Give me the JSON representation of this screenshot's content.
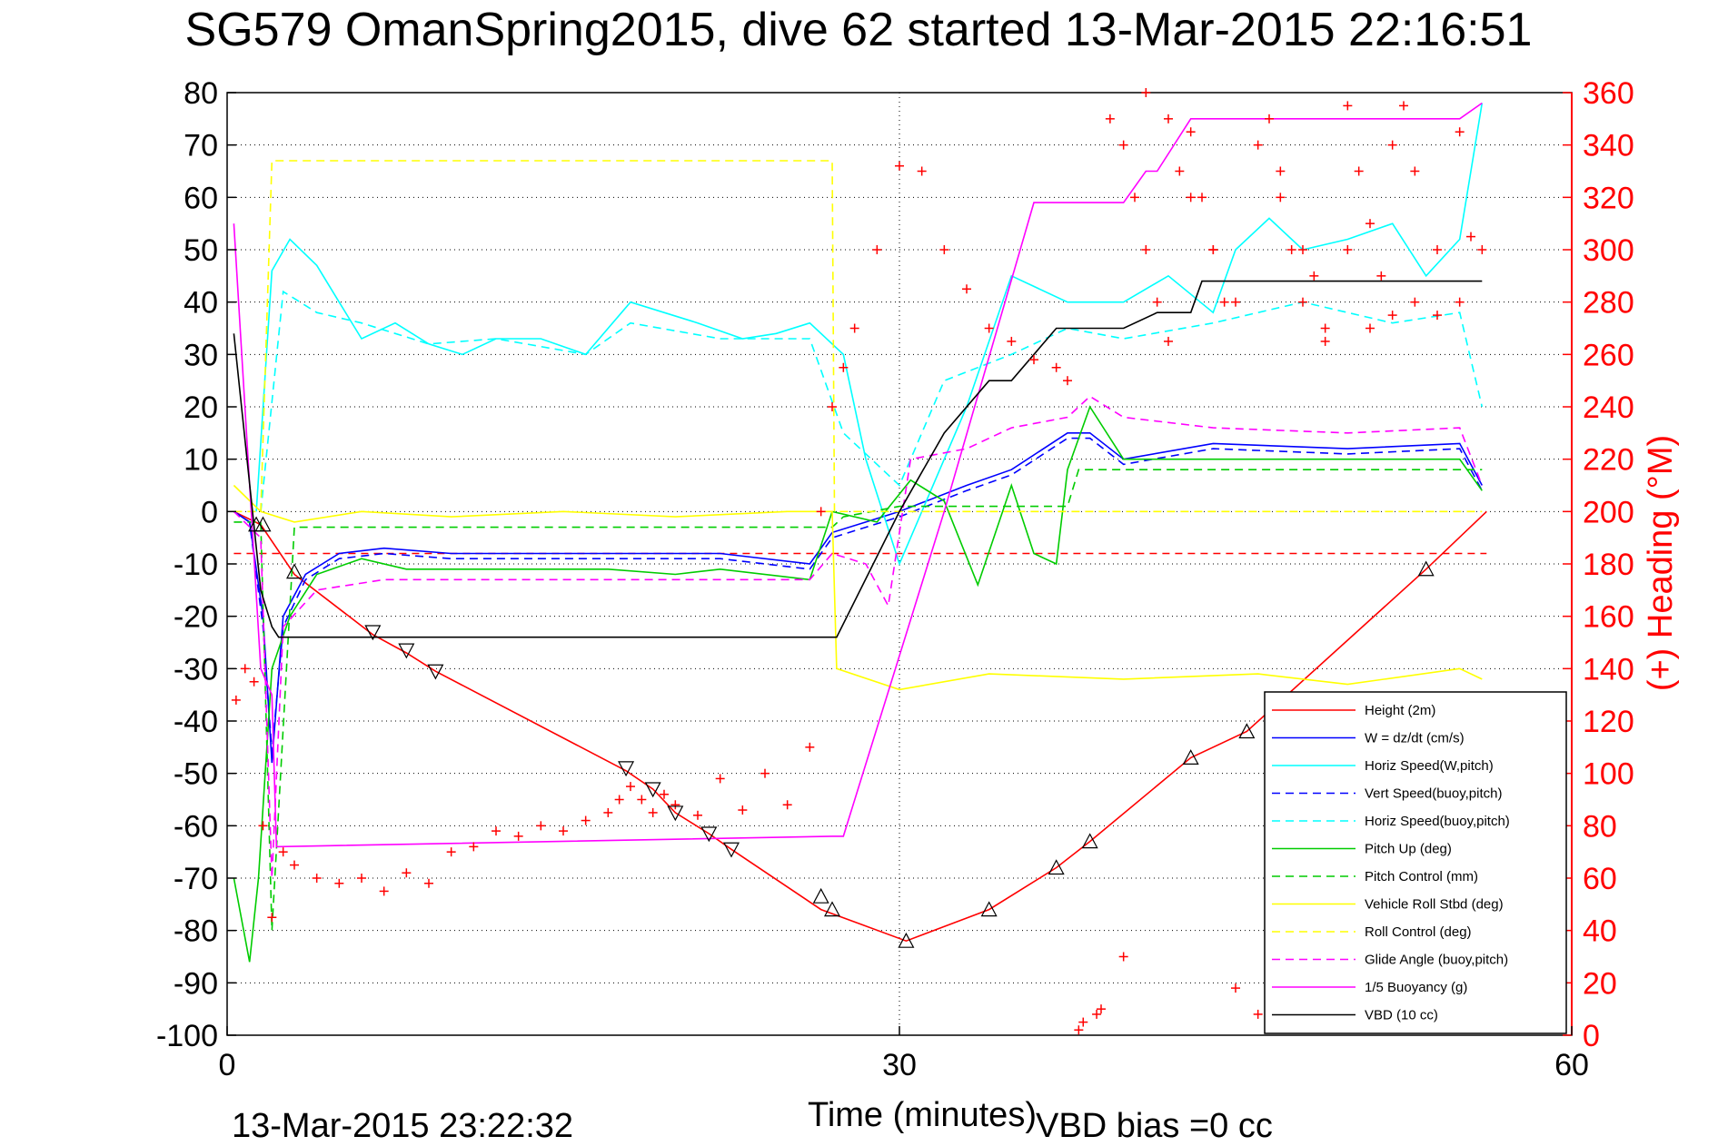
{
  "figure": {
    "title": "SG579 OmanSpring2015, dive 62 started 13-Mar-2015 22:16:51",
    "footer_left": "13-Mar-2015 23:22:32",
    "footer_right": "VBD bias =0 cc"
  },
  "chart_data": {
    "type": "line",
    "title": "SG579 OmanSpring2015, dive 62 started 13-Mar-2015 22:16:51",
    "xlabel": "Time (minutes)",
    "ylabel": "",
    "y2label": "(+) Heading (°M)",
    "xlim": [
      0,
      60
    ],
    "ylim": [
      -100,
      80
    ],
    "y2lim": [
      0,
      360
    ],
    "xticks": [
      "0",
      "30",
      "60"
    ],
    "yticks": [
      "80",
      "70",
      "60",
      "50",
      "40",
      "30",
      "20",
      "10",
      "0",
      "-10",
      "-20",
      "-30",
      "-40",
      "-50",
      "-60",
      "-70",
      "-80",
      "-90",
      "-100"
    ],
    "y2ticks": [
      "360",
      "340",
      "320",
      "300",
      "280",
      "260",
      "240",
      "220",
      "200",
      "180",
      "160",
      "140",
      "120",
      "100",
      "80",
      "60",
      "40",
      "20",
      "0"
    ],
    "grid": true,
    "legend_position": "bottom-right",
    "colors": {
      "red": "#ff0000",
      "blue": "#0000ff",
      "cyan": "#00ffff",
      "green": "#00cc00",
      "yellow": "#ffff00",
      "magenta": "#ff00ff",
      "black": "#000000"
    },
    "series": [
      {
        "name": "Height (2m)",
        "color": "#ff0000",
        "dash": "solid",
        "x": [
          0.3,
          1.5,
          3.0,
          6.5,
          8.0,
          9.3,
          17.8,
          19.0,
          20.0,
          21.5,
          22.5,
          26.5,
          30.3,
          34.0,
          37.0,
          38.5,
          43.0,
          45.5,
          53.5,
          56.2
        ],
        "y": [
          0,
          -2.5,
          -12,
          -23.5,
          -27,
          -30.5,
          -49.5,
          -53,
          -57.5,
          -61.5,
          -64.5,
          -76,
          -82,
          -76,
          -68,
          -63,
          -47,
          -42,
          -11,
          0
        ]
      },
      {
        "name": "W = dz/dt (cm/s)",
        "color": "#0000ff",
        "dash": "solid",
        "x": [
          0.3,
          1.0,
          1.6,
          2.0,
          2.5,
          3.5,
          5.0,
          7.0,
          10.0,
          17.0,
          19.0,
          22.0,
          26.0,
          27.0,
          28.5,
          30.0,
          33.0,
          35.0,
          37.5,
          38.5,
          40.0,
          44.0,
          50.0,
          55.0,
          56.0
        ],
        "y": [
          0,
          -2,
          -20,
          -48,
          -20,
          -12,
          -8,
          -7,
          -8,
          -8,
          -8,
          -8,
          -10,
          -4,
          -2,
          0,
          5,
          8,
          15,
          15,
          10,
          13,
          12,
          13,
          5
        ]
      },
      {
        "name": "Horiz Speed(W,pitch)",
        "color": "#00ffff",
        "dash": "solid",
        "x": [
          1.3,
          2.0,
          2.8,
          4.0,
          5.0,
          6.0,
          7.5,
          9.0,
          10.5,
          12.0,
          14.0,
          16.0,
          18.0,
          19.5,
          21.0,
          23.0,
          24.5,
          26.0,
          27.5,
          28.5,
          30.0,
          32.0,
          33.0,
          35.0,
          37.5,
          40.0,
          42.0,
          44.0,
          45.0,
          46.5,
          48.0,
          50.0,
          52.0,
          53.5,
          55.0,
          56.0
        ],
        "y": [
          0,
          46,
          52,
          47,
          40,
          33,
          36,
          32,
          30,
          33,
          33,
          30,
          40,
          38,
          36,
          33,
          34,
          36,
          30,
          10,
          -10,
          10,
          20,
          45,
          40,
          40,
          45,
          38,
          50,
          56,
          50,
          52,
          55,
          45,
          52,
          78
        ]
      },
      {
        "name": "Vert Speed(buoy,pitch)",
        "color": "#0000ff",
        "dash": "dash",
        "x": [
          0.3,
          1.0,
          1.6,
          2.0,
          2.5,
          3.5,
          5.0,
          7.0,
          10.0,
          17.0,
          19.0,
          22.0,
          26.0,
          27.0,
          28.5,
          30.0,
          33.0,
          35.0,
          37.5,
          38.5,
          40.0,
          44.0,
          50.0,
          55.0,
          56.0
        ],
        "y": [
          0,
          -2,
          -22,
          -46,
          -22,
          -13,
          -9,
          -8,
          -9,
          -9,
          -9,
          -9,
          -11,
          -5,
          -3,
          -1,
          4,
          7,
          14,
          14,
          9,
          12,
          11,
          12,
          4
        ]
      },
      {
        "name": "Horiz Speed(buoy,pitch)",
        "color": "#00ffff",
        "dash": "dash",
        "x": [
          1.5,
          2.5,
          4.0,
          6.0,
          9.0,
          12.0,
          16.0,
          18.0,
          22.0,
          26.0,
          27.5,
          30.0,
          32.0,
          35.0,
          37.5,
          40.0,
          44.0,
          48.0,
          52.0,
          55.0,
          56.0
        ],
        "y": [
          0,
          42,
          38,
          36,
          32,
          33,
          30,
          36,
          33,
          33,
          15,
          5,
          25,
          30,
          35,
          33,
          36,
          40,
          36,
          38,
          20
        ]
      },
      {
        "name": "Pitch Up (deg)",
        "color": "#00cc00",
        "dash": "solid",
        "x": [
          0.3,
          1.0,
          1.4,
          2.0,
          2.8,
          4.0,
          6.0,
          8.0,
          12.0,
          17.0,
          20.0,
          22.0,
          26.0,
          27.0,
          29.0,
          30.5,
          32.0,
          33.5,
          35.0,
          36.0,
          37.0,
          37.5,
          38.5,
          40.0,
          44.0,
          50.0,
          55.0,
          56.0
        ],
        "y": [
          -70,
          -86,
          -70,
          -30,
          -20,
          -12,
          -9,
          -11,
          -11,
          -11,
          -12,
          -11,
          -13,
          0,
          -2,
          6,
          2,
          -14,
          5,
          -8,
          -10,
          8,
          20,
          10,
          10,
          10,
          10,
          4
        ]
      },
      {
        "name": "Pitch Control (mm)",
        "color": "#00cc00",
        "dash": "dash",
        "x": [
          0.3,
          1.5,
          2.0,
          3.0,
          10.0,
          27.0,
          27.5,
          30.0,
          37.5,
          38.0,
          56.0
        ],
        "y": [
          -2,
          -2,
          -80,
          -3,
          -3,
          -3,
          -1,
          1,
          1,
          8,
          8
        ]
      },
      {
        "name": "Vehicle Roll Stbd (deg)",
        "color": "#ffff00",
        "dash": "solid",
        "x": [
          0.3,
          1.5,
          3.0,
          6.0,
          10.0,
          15.0,
          20.0,
          25.0,
          27.0,
          27.2,
          30.0,
          34.0,
          40.0,
          46.0,
          50.0,
          55.0,
          56.0
        ],
        "y": [
          5,
          0,
          -2,
          0,
          -1,
          0,
          -1,
          0,
          0,
          -30,
          -34,
          -31,
          -32,
          -31,
          -33,
          -30,
          -32
        ]
      },
      {
        "name": "Roll Control (deg)",
        "color": "#ffff00",
        "dash": "dash",
        "x": [
          0.3,
          1.5,
          2.0,
          27.0,
          27.1,
          56.0
        ],
        "y": [
          0,
          0,
          67,
          67,
          0,
          0
        ]
      },
      {
        "name": "Glide Angle (buoy,pitch)",
        "color": "#ff00ff",
        "dash": "dash",
        "x": [
          0.3,
          1.5,
          2.0,
          2.5,
          4.0,
          7.0,
          12.0,
          17.0,
          22.0,
          26.0,
          27.0,
          28.5,
          29.5,
          30.5,
          33.0,
          35.0,
          37.5,
          38.5,
          40.0,
          44.0,
          50.0,
          55.0,
          56.0
        ],
        "y": [
          0,
          -5,
          -70,
          -22,
          -15,
          -13,
          -13,
          -13,
          -13,
          -13,
          -8,
          -10,
          -18,
          10,
          12,
          16,
          18,
          22,
          18,
          16,
          15,
          16,
          5
        ]
      },
      {
        "name": "1/5 Buoyancy (g)",
        "color": "#ff00ff",
        "dash": "solid",
        "x": [
          0.3,
          1.5,
          2.0,
          2.2,
          27.0,
          27.5,
          32.0,
          36.0,
          37.0,
          38.5,
          40.0,
          41.0,
          41.5,
          43.0,
          44.0,
          52.0,
          55.0,
          56.0
        ],
        "y": [
          55,
          -30,
          -35,
          -64,
          -62,
          -62,
          0,
          59,
          59,
          59,
          59,
          65,
          65,
          75,
          75,
          75,
          75,
          78
        ]
      },
      {
        "name": "VBD (10 cc)",
        "color": "#000000",
        "dash": "solid",
        "x": [
          0.3,
          1.5,
          2.0,
          2.3,
          27.0,
          27.2,
          30.0,
          32.0,
          34.0,
          35.0,
          37.0,
          38.0,
          40.0,
          41.5,
          43.0,
          43.5,
          56.0
        ],
        "y": [
          34,
          -15,
          -22,
          -24,
          -24,
          -24,
          0,
          15,
          25,
          25,
          35,
          35,
          35,
          38,
          38,
          44,
          44
        ]
      }
    ],
    "heading_points": {
      "name": "(+) Heading (°M)",
      "color": "#ff0000",
      "marker": "+",
      "axis": "right",
      "x": [
        0.4,
        0.8,
        1.2,
        1.6,
        2.0,
        2.5,
        3.0,
        4.0,
        5.0,
        6.0,
        7.0,
        8.0,
        9.0,
        10.0,
        11.0,
        12.0,
        13.0,
        14.0,
        15.0,
        16.0,
        17.0,
        17.5,
        18.0,
        18.5,
        19.0,
        19.5,
        20.0,
        21.0,
        22.0,
        23.0,
        24.0,
        25.0,
        26.0,
        26.5,
        27.0,
        27.5,
        28.0,
        29.0,
        30.0,
        31.0,
        32.0,
        33.0,
        34.0,
        35.0,
        36.0,
        37.0,
        37.5,
        38.0,
        39.0,
        40.0,
        41.0,
        42.0,
        43.0,
        44.0,
        45.0,
        46.0,
        47.0,
        48.0,
        49.0,
        50.0,
        51.0,
        52.0,
        53.0,
        54.0,
        55.0,
        55.5
      ],
      "y": [
        128,
        140,
        135,
        80,
        45,
        70,
        65,
        60,
        58,
        60,
        55,
        62,
        58,
        70,
        72,
        78,
        76,
        80,
        78,
        82,
        85,
        90,
        95,
        90,
        85,
        92,
        88,
        84,
        98,
        86,
        100,
        88,
        110,
        200,
        240,
        255,
        270,
        300,
        332,
        330,
        300,
        285,
        270,
        265,
        258,
        255,
        250,
        2,
        10,
        30,
        360,
        350,
        320,
        300,
        280,
        340,
        320,
        300,
        265,
        300,
        270,
        340,
        280,
        275,
        345,
        305
      ],
      "x2": [
        38.2,
        38.8,
        39.4,
        40.0,
        40.5,
        41.0,
        41.5,
        42.0,
        42.5,
        43.0,
        43.5,
        44.0,
        44.5,
        45.0,
        46.0,
        46.5,
        47.0,
        47.5,
        48.0,
        48.5,
        49.0,
        50.0,
        50.5,
        51.0,
        51.5,
        52.0,
        52.5,
        53.0,
        54.0,
        55.0,
        56.0
      ],
      "y2": [
        5,
        8,
        350,
        340,
        320,
        300,
        280,
        265,
        330,
        345,
        320,
        300,
        280,
        18,
        8,
        350,
        330,
        300,
        280,
        290,
        270,
        355,
        330,
        310,
        290,
        275,
        355,
        330,
        300,
        280,
        300
      ]
    },
    "triangle_markers": {
      "x": [
        1.3,
        1.6,
        3.0,
        6.5,
        8.0,
        9.3,
        17.8,
        19.0,
        20.0,
        21.5,
        22.5,
        26.5,
        27.0,
        30.3,
        34.0,
        37.0,
        38.5,
        43.0,
        45.5,
        53.5
      ],
      "y": [
        -2.5,
        -2.5,
        -11.5,
        -23,
        -26.5,
        -30.5,
        -49,
        -53,
        -57.5,
        -61.5,
        -64.5,
        -73.5,
        -76,
        -82,
        -76,
        -68,
        -63,
        -47,
        -42,
        -11
      ]
    },
    "reference_line": {
      "axis": "left",
      "y": -8,
      "color": "#ff0000",
      "dash": "dash",
      "x_range": [
        0.3,
        56.2
      ]
    }
  }
}
